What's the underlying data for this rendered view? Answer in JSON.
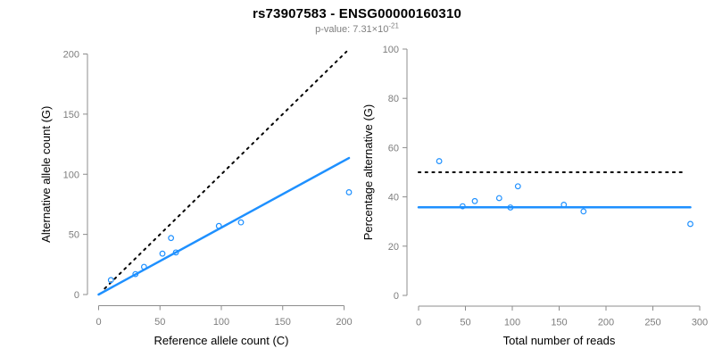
{
  "header": {
    "title": "rs73907583 - ENSG00000160310",
    "p_value_label": "p-value:",
    "p_value_prefix": "p-value: 7.31×10",
    "p_value_exponent": "-21",
    "p_value_mantissa": "7.31",
    "p_value_base": "10"
  },
  "colors": {
    "accent_blue": "#1E90FF",
    "dotted_black": "#000000",
    "axis_gray": "#8c8c8c",
    "tick_label_gray": "#7d7d7d",
    "axis_title_black": "#000000",
    "subtitle_gray": "#7f7f7f",
    "background": "#ffffff"
  },
  "chart_data": [
    {
      "type": "scatter",
      "panel": "left",
      "title": "",
      "xlabel": "Reference allele count (C)",
      "ylabel": "Alternative allele count (G)",
      "xlim": [
        0,
        200
      ],
      "ylim": [
        0,
        200
      ],
      "xticks": [
        0,
        50,
        100,
        150,
        200
      ],
      "yticks": [
        0,
        50,
        100,
        150,
        200
      ],
      "grid": false,
      "legend": "none",
      "marker": "open-circle",
      "points": [
        {
          "x": 10,
          "y": 12
        },
        {
          "x": 30,
          "y": 17
        },
        {
          "x": 37,
          "y": 23
        },
        {
          "x": 52,
          "y": 34
        },
        {
          "x": 59,
          "y": 47
        },
        {
          "x": 63,
          "y": 35
        },
        {
          "x": 98,
          "y": 57
        },
        {
          "x": 116,
          "y": 60
        },
        {
          "x": 204,
          "y": 85
        }
      ],
      "lines": [
        {
          "name": "identity-line",
          "style": "dotted",
          "color": "#000000",
          "width": 2,
          "x1": 5,
          "y1": 5,
          "x2": 202,
          "y2": 202
        },
        {
          "name": "fit-line",
          "style": "solid",
          "color": "#1E90FF",
          "width": 2.5,
          "x1": 0,
          "y1": 0,
          "x2": 204,
          "y2": 113.5
        }
      ]
    },
    {
      "type": "scatter",
      "panel": "right",
      "title": "",
      "xlabel": "Total number of reads",
      "ylabel": "Percentage alternative (G)",
      "xlim": [
        0,
        300
      ],
      "ylim": [
        0,
        100
      ],
      "xticks": [
        0,
        50,
        100,
        150,
        200,
        250,
        300
      ],
      "yticks": [
        0,
        20,
        40,
        60,
        80,
        100
      ],
      "grid": false,
      "legend": "none",
      "marker": "open-circle",
      "points": [
        {
          "x": 22,
          "y": 54.5
        },
        {
          "x": 47,
          "y": 36.2
        },
        {
          "x": 60,
          "y": 38.3
        },
        {
          "x": 86,
          "y": 39.5
        },
        {
          "x": 98,
          "y": 35.7
        },
        {
          "x": 106,
          "y": 44.3
        },
        {
          "x": 155,
          "y": 36.8
        },
        {
          "x": 176,
          "y": 34.1
        },
        {
          "x": 290,
          "y": 29
        }
      ],
      "lines": [
        {
          "name": "expected-50pct-line",
          "style": "dotted",
          "color": "#000000",
          "width": 2,
          "x1": 0,
          "y1": 50,
          "x2": 285,
          "y2": 50
        },
        {
          "name": "mean-percentage-line",
          "style": "solid",
          "color": "#1E90FF",
          "width": 2.5,
          "x1": 0,
          "y1": 35.8,
          "x2": 290,
          "y2": 35.8
        }
      ]
    }
  ]
}
